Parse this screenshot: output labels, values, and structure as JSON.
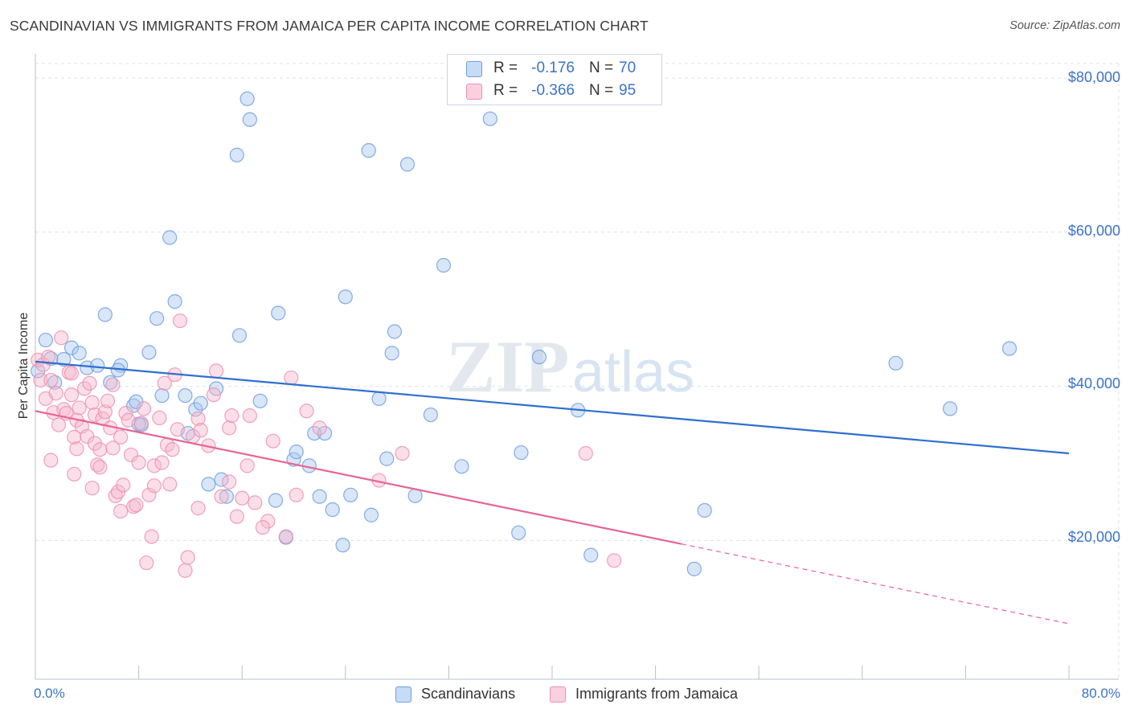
{
  "title": "SCANDINAVIAN VS IMMIGRANTS FROM JAMAICA PER CAPITA INCOME CORRELATION CHART",
  "source": "Source: ZipAtlas.com",
  "colors": {
    "blue_fill": "#a9c8f0",
    "blue_stroke": "#6e9fe0",
    "blue_line": "#2f6fd0",
    "pink_fill": "#f6b8cb",
    "pink_stroke": "#ee8fb0",
    "pink_line": "#e8658f",
    "grid": "#dde3ea",
    "tick_text": "#3b73c8"
  },
  "legend": {
    "rows": [
      {
        "r_label": "R =",
        "r_value": "-0.176",
        "n_label": "N =",
        "n_value": "70"
      },
      {
        "r_label": "R =",
        "r_value": "-0.366",
        "n_label": "N =",
        "n_value": "95"
      }
    ]
  },
  "bottom_legend": [
    "Scandinavians",
    "Immigrants from Jamaica"
  ],
  "axis": {
    "ylabel": "Per Capita Income",
    "x_min_label": "0.0%",
    "x_max_label": "80.0%",
    "y_ticks": [
      "$80,000",
      "$60,000",
      "$40,000",
      "$20,000"
    ]
  },
  "chart_data": {
    "type": "scatter",
    "title": "SCANDINAVIAN VS IMMIGRANTS FROM JAMAICA PER CAPITA INCOME CORRELATION CHART",
    "xlabel": "",
    "ylabel": "Per Capita Income",
    "xlim": [
      0,
      80
    ],
    "ylim": [
      0,
      82000
    ],
    "y_tick_values": [
      20000,
      40000,
      60000,
      80000
    ],
    "x_tick_values": [
      0,
      8,
      16,
      24,
      32,
      40,
      48,
      56,
      64,
      72,
      80
    ],
    "grid": true,
    "series": [
      {
        "name": "Scandinavians",
        "r": -0.176,
        "n": 70,
        "trend": {
          "x0": 0,
          "y0": 43200,
          "x1": 80,
          "y1": 31300,
          "dashed_from": null
        },
        "points": [
          [
            0.2,
            42000
          ],
          [
            0.8,
            46000
          ],
          [
            1.2,
            43600
          ],
          [
            1.5,
            40500
          ],
          [
            2.2,
            43500
          ],
          [
            2.8,
            45000
          ],
          [
            3.4,
            44300
          ],
          [
            4.0,
            42400
          ],
          [
            4.8,
            42700
          ],
          [
            5.4,
            49300
          ],
          [
            5.8,
            40500
          ],
          [
            6.6,
            42700
          ],
          [
            6.4,
            42100
          ],
          [
            7.6,
            37500
          ],
          [
            7.8,
            38000
          ],
          [
            8.2,
            35000
          ],
          [
            8.8,
            44400
          ],
          [
            9.4,
            48800
          ],
          [
            9.8,
            38800
          ],
          [
            10.4,
            59300
          ],
          [
            10.8,
            51000
          ],
          [
            11.6,
            38800
          ],
          [
            11.8,
            33900
          ],
          [
            12.4,
            37000
          ],
          [
            12.8,
            37800
          ],
          [
            13.4,
            27300
          ],
          [
            14.0,
            39700
          ],
          [
            14.4,
            27900
          ],
          [
            14.8,
            25700
          ],
          [
            15.6,
            70000
          ],
          [
            15.8,
            46600
          ],
          [
            16.4,
            77300
          ],
          [
            16.6,
            74600
          ],
          [
            17.4,
            38100
          ],
          [
            18.6,
            25200
          ],
          [
            18.8,
            49500
          ],
          [
            19.4,
            20400
          ],
          [
            20.0,
            30500
          ],
          [
            20.2,
            31500
          ],
          [
            21.2,
            29700
          ],
          [
            21.6,
            33900
          ],
          [
            22.0,
            25700
          ],
          [
            22.4,
            33900
          ],
          [
            23.0,
            24000
          ],
          [
            23.8,
            19400
          ],
          [
            24.0,
            51600
          ],
          [
            24.4,
            25900
          ],
          [
            25.8,
            70600
          ],
          [
            26.0,
            23300
          ],
          [
            26.6,
            38400
          ],
          [
            27.2,
            30600
          ],
          [
            27.6,
            44300
          ],
          [
            27.8,
            47100
          ],
          [
            28.8,
            68800
          ],
          [
            29.4,
            25800
          ],
          [
            30.6,
            36300
          ],
          [
            31.6,
            55700
          ],
          [
            33.0,
            29600
          ],
          [
            35.2,
            74700
          ],
          [
            37.4,
            21000
          ],
          [
            37.6,
            31400
          ],
          [
            39.0,
            43800
          ],
          [
            42.0,
            36900
          ],
          [
            43.0,
            18100
          ],
          [
            51.0,
            16300
          ],
          [
            51.8,
            23900
          ],
          [
            66.6,
            43000
          ],
          [
            70.8,
            37100
          ],
          [
            75.4,
            44900
          ],
          [
            8.0,
            35100
          ]
        ]
      },
      {
        "name": "Immigrants from Jamaica",
        "r": -0.366,
        "n": 95,
        "trend": {
          "x0": 0,
          "y0": 36800,
          "x1": 80,
          "y1": 9200,
          "dashed_from": 50
        },
        "points": [
          [
            0.2,
            43400
          ],
          [
            0.4,
            40800
          ],
          [
            0.6,
            42800
          ],
          [
            0.8,
            38400
          ],
          [
            1.0,
            43800
          ],
          [
            1.2,
            40800
          ],
          [
            1.4,
            36600
          ],
          [
            1.6,
            39100
          ],
          [
            1.8,
            35000
          ],
          [
            2.0,
            46300
          ],
          [
            2.2,
            37000
          ],
          [
            2.4,
            36500
          ],
          [
            2.6,
            41800
          ],
          [
            2.8,
            41700
          ],
          [
            2.8,
            38900
          ],
          [
            3.0,
            33400
          ],
          [
            3.2,
            31900
          ],
          [
            3.2,
            35600
          ],
          [
            3.4,
            37200
          ],
          [
            3.6,
            34800
          ],
          [
            3.8,
            39700
          ],
          [
            4.0,
            33500
          ],
          [
            4.2,
            40400
          ],
          [
            4.4,
            37900
          ],
          [
            4.6,
            32600
          ],
          [
            4.6,
            36300
          ],
          [
            4.8,
            29800
          ],
          [
            5.0,
            31800
          ],
          [
            5.0,
            29500
          ],
          [
            5.2,
            35800
          ],
          [
            5.4,
            36700
          ],
          [
            5.6,
            38100
          ],
          [
            5.8,
            34600
          ],
          [
            6.0,
            32000
          ],
          [
            6.0,
            40200
          ],
          [
            6.2,
            25800
          ],
          [
            6.4,
            26300
          ],
          [
            6.6,
            33400
          ],
          [
            6.8,
            27200
          ],
          [
            7.0,
            36500
          ],
          [
            7.2,
            35600
          ],
          [
            7.4,
            31100
          ],
          [
            7.6,
            24400
          ],
          [
            7.8,
            24600
          ],
          [
            8.0,
            30100
          ],
          [
            8.2,
            35200
          ],
          [
            8.4,
            37100
          ],
          [
            8.6,
            17100
          ],
          [
            8.8,
            25900
          ],
          [
            9.0,
            20500
          ],
          [
            9.2,
            27100
          ],
          [
            9.2,
            29700
          ],
          [
            9.6,
            35900
          ],
          [
            9.8,
            30100
          ],
          [
            10.0,
            40400
          ],
          [
            10.2,
            32400
          ],
          [
            10.4,
            27300
          ],
          [
            10.6,
            31800
          ],
          [
            10.8,
            41500
          ],
          [
            11.0,
            34400
          ],
          [
            11.2,
            48500
          ],
          [
            11.6,
            16100
          ],
          [
            11.8,
            17800
          ],
          [
            12.2,
            33500
          ],
          [
            12.6,
            35800
          ],
          [
            12.8,
            34300
          ],
          [
            13.4,
            32300
          ],
          [
            13.8,
            38900
          ],
          [
            14.0,
            42000
          ],
          [
            14.4,
            25700
          ],
          [
            15.0,
            34600
          ],
          [
            15.2,
            36200
          ],
          [
            15.6,
            23100
          ],
          [
            16.0,
            25500
          ],
          [
            16.4,
            29700
          ],
          [
            16.6,
            36200
          ],
          [
            17.0,
            24900
          ],
          [
            18.0,
            22500
          ],
          [
            18.4,
            32900
          ],
          [
            19.4,
            20500
          ],
          [
            19.8,
            41100
          ],
          [
            20.2,
            25900
          ],
          [
            21.0,
            36800
          ],
          [
            22.0,
            34600
          ],
          [
            26.6,
            27800
          ],
          [
            28.4,
            31300
          ],
          [
            42.6,
            31300
          ],
          [
            44.8,
            17400
          ],
          [
            1.2,
            30400
          ],
          [
            3.0,
            28600
          ],
          [
            4.4,
            26800
          ],
          [
            6.6,
            23800
          ],
          [
            12.6,
            24200
          ],
          [
            15.0,
            27600
          ],
          [
            17.6,
            21700
          ]
        ]
      }
    ]
  }
}
